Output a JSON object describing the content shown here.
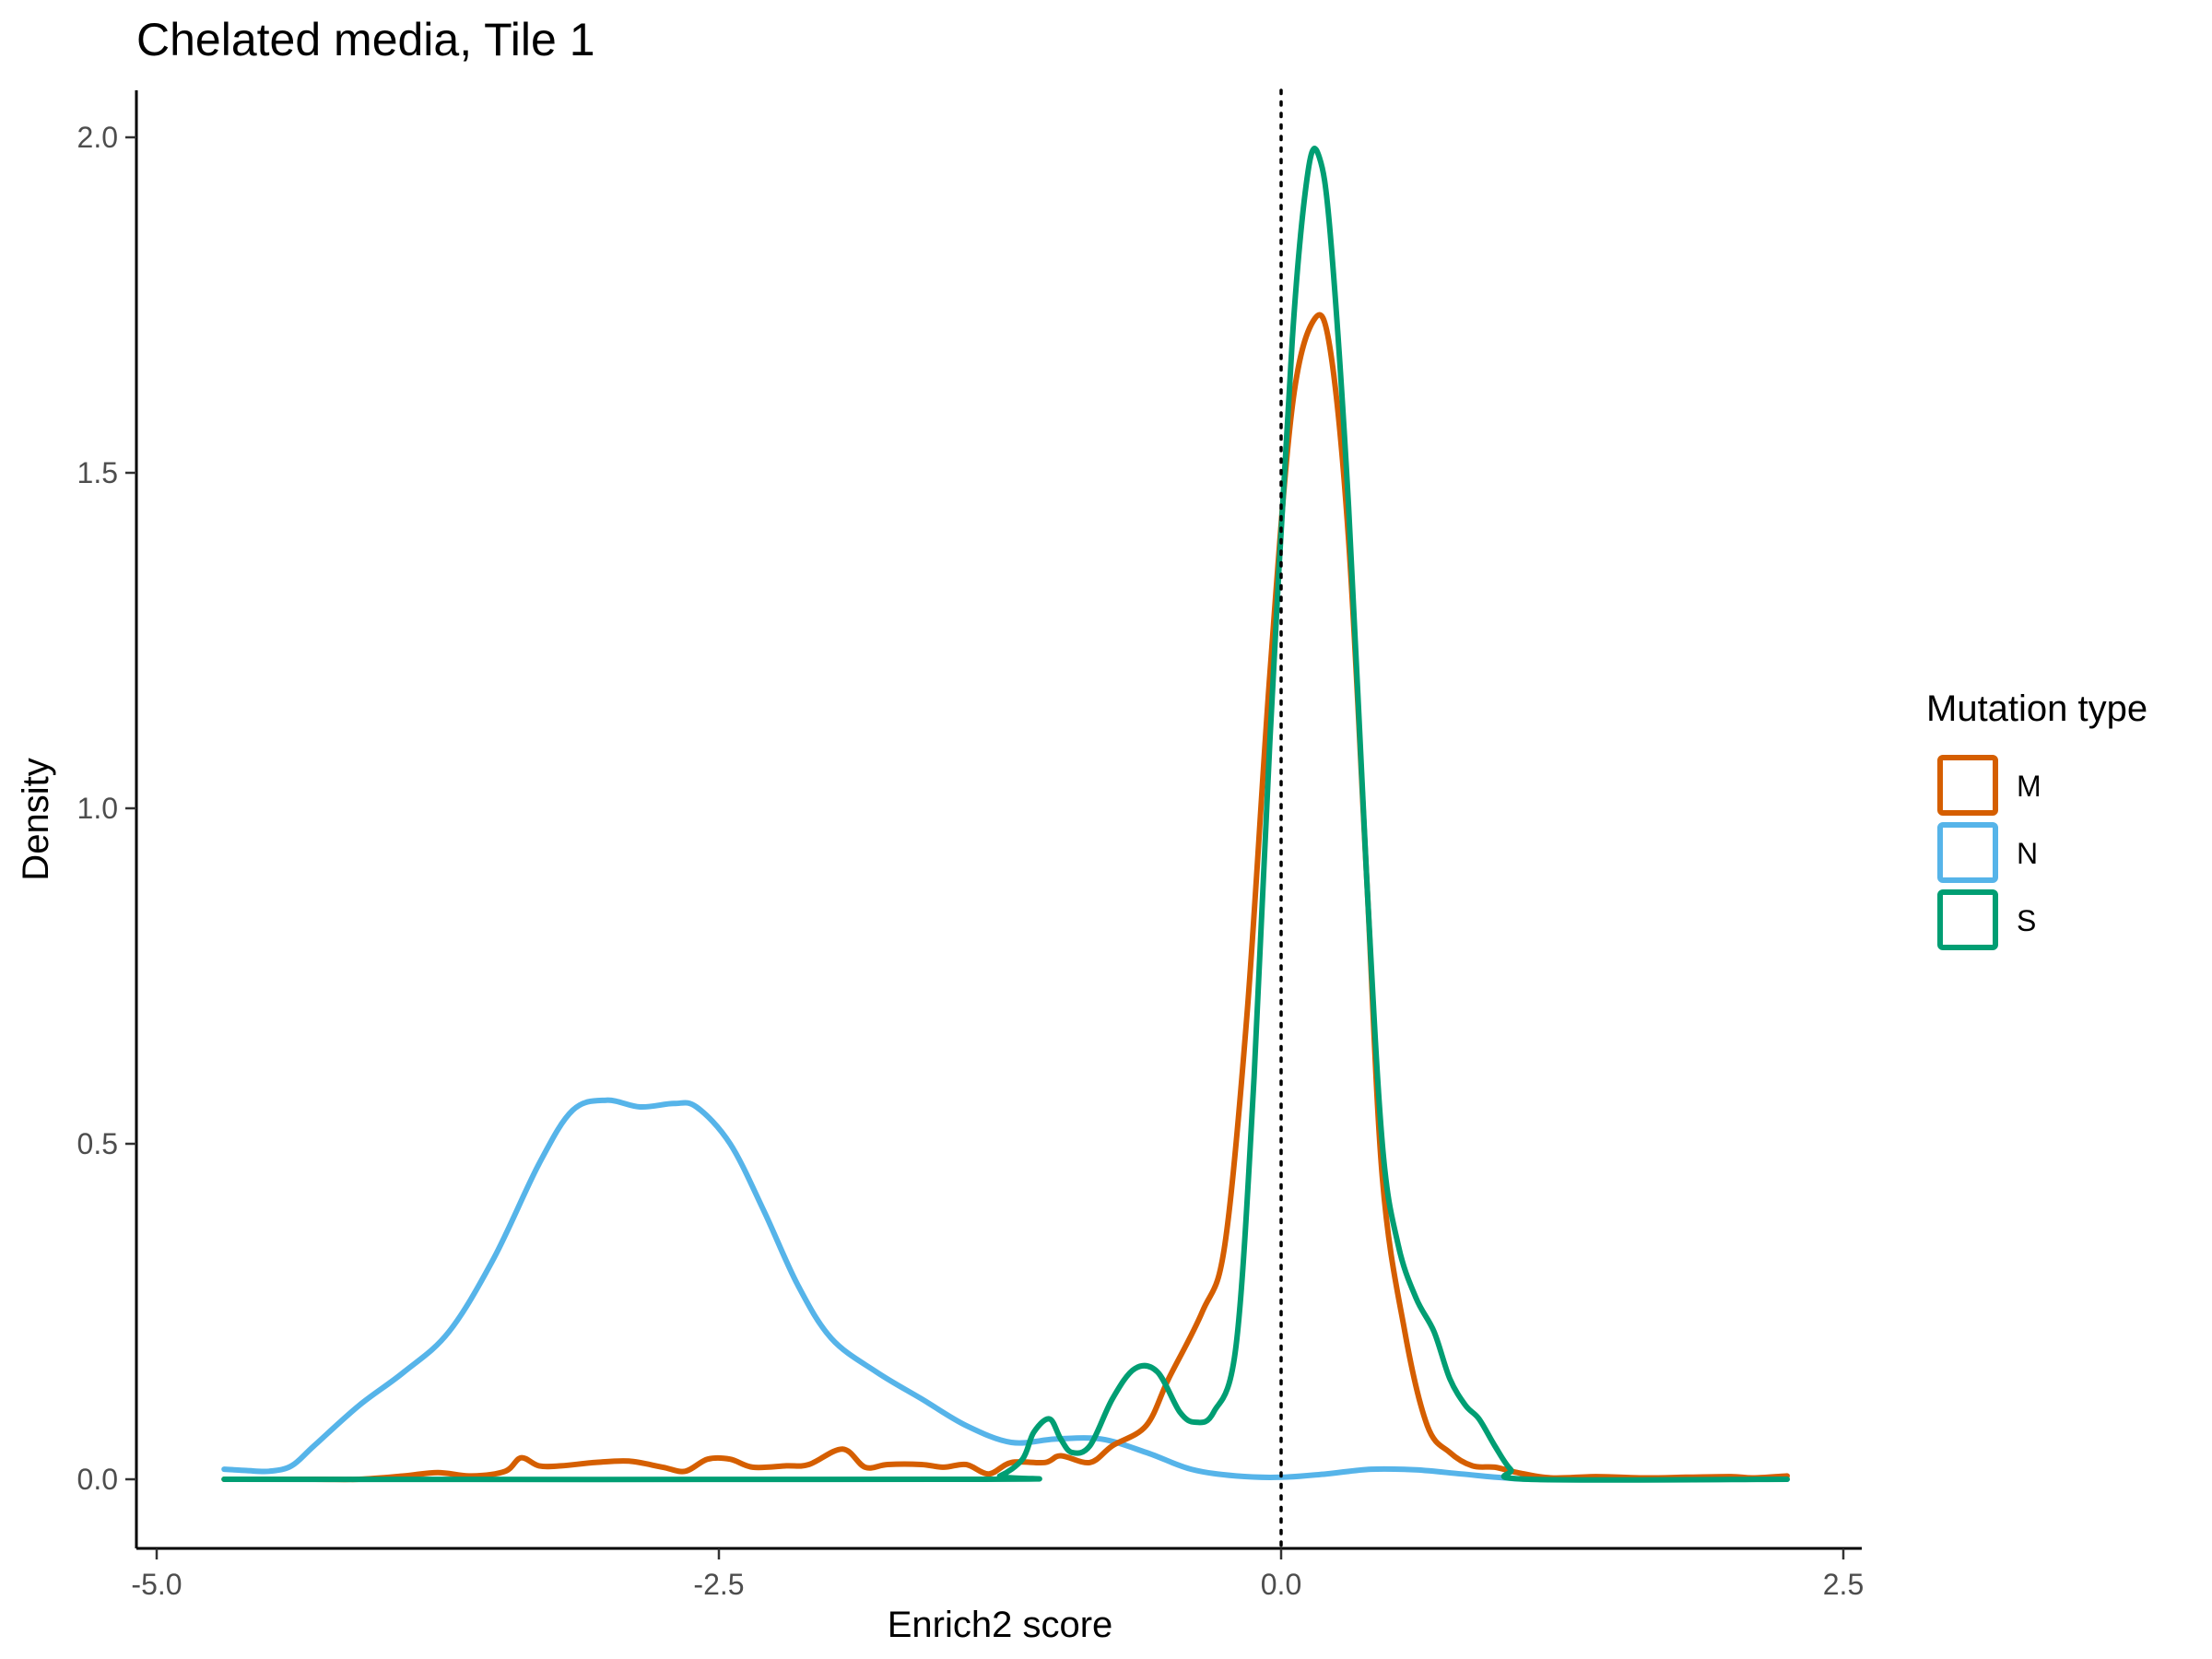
{
  "chart_data": {
    "type": "line",
    "title": "Chelated media, Tile 1",
    "xlabel": "Enrich2 score",
    "ylabel": "Density",
    "xlim": [
      -5.0,
      2.5
    ],
    "ylim": [
      -0.1,
      2.05
    ],
    "xticks": [
      -5.0,
      -2.5,
      0.0,
      2.5
    ],
    "xtick_labels": [
      "-5.0",
      "-2.5",
      "0.0",
      "2.5"
    ],
    "yticks": [
      0.0,
      0.5,
      1.0,
      1.5,
      2.0
    ],
    "ytick_labels": [
      "0.0",
      "0.5",
      "1.0",
      "1.5",
      "2.0"
    ],
    "grid": false,
    "vline": {
      "x": 0.0,
      "style": "dotted"
    },
    "legend": {
      "title": "Mutation type",
      "position": "right"
    },
    "series": [
      {
        "name": "M",
        "color": "#D55E00",
        "points": [
          [
            -4.7,
            0.0
          ],
          [
            -4.3,
            0.0
          ],
          [
            -4.1,
            0.0
          ],
          [
            -3.9,
            0.005
          ],
          [
            -3.75,
            0.01
          ],
          [
            -3.6,
            0.005
          ],
          [
            -3.45,
            0.012
          ],
          [
            -3.38,
            0.032
          ],
          [
            -3.3,
            0.02
          ],
          [
            -3.2,
            0.02
          ],
          [
            -3.05,
            0.025
          ],
          [
            -2.9,
            0.027
          ],
          [
            -2.75,
            0.018
          ],
          [
            -2.65,
            0.012
          ],
          [
            -2.55,
            0.03
          ],
          [
            -2.45,
            0.03
          ],
          [
            -2.35,
            0.018
          ],
          [
            -2.2,
            0.02
          ],
          [
            -2.1,
            0.022
          ],
          [
            -1.95,
            0.045
          ],
          [
            -1.85,
            0.018
          ],
          [
            -1.75,
            0.022
          ],
          [
            -1.6,
            0.022
          ],
          [
            -1.5,
            0.018
          ],
          [
            -1.4,
            0.022
          ],
          [
            -1.3,
            0.008
          ],
          [
            -1.2,
            0.025
          ],
          [
            -1.05,
            0.025
          ],
          [
            -0.98,
            0.035
          ],
          [
            -0.85,
            0.025
          ],
          [
            -0.75,
            0.05
          ],
          [
            -0.6,
            0.08
          ],
          [
            -0.5,
            0.15
          ],
          [
            -0.35,
            0.25
          ],
          [
            -0.25,
            0.35
          ],
          [
            -0.15,
            0.7
          ],
          [
            -0.05,
            1.2
          ],
          [
            0.05,
            1.6
          ],
          [
            0.15,
            1.73
          ],
          [
            0.22,
            1.68
          ],
          [
            0.3,
            1.4
          ],
          [
            0.38,
            0.9
          ],
          [
            0.45,
            0.45
          ],
          [
            0.55,
            0.22
          ],
          [
            0.65,
            0.08
          ],
          [
            0.75,
            0.04
          ],
          [
            0.85,
            0.02
          ],
          [
            0.95,
            0.018
          ],
          [
            1.05,
            0.01
          ],
          [
            1.2,
            0.002
          ],
          [
            1.4,
            0.004
          ],
          [
            1.6,
            0.002
          ],
          [
            1.8,
            0.003
          ],
          [
            2.0,
            0.004
          ],
          [
            2.1,
            0.002
          ],
          [
            2.25,
            0.005
          ]
        ]
      },
      {
        "name": "N",
        "color": "#56B4E9",
        "points": [
          [
            -4.7,
            0.015
          ],
          [
            -4.6,
            0.013
          ],
          [
            -4.5,
            0.012
          ],
          [
            -4.4,
            0.02
          ],
          [
            -4.3,
            0.05
          ],
          [
            -4.1,
            0.11
          ],
          [
            -3.9,
            0.16
          ],
          [
            -3.7,
            0.22
          ],
          [
            -3.5,
            0.33
          ],
          [
            -3.3,
            0.47
          ],
          [
            -3.15,
            0.55
          ],
          [
            -3.0,
            0.565
          ],
          [
            -2.85,
            0.555
          ],
          [
            -2.7,
            0.56
          ],
          [
            -2.6,
            0.555
          ],
          [
            -2.45,
            0.5
          ],
          [
            -2.3,
            0.4
          ],
          [
            -2.15,
            0.29
          ],
          [
            -2.0,
            0.21
          ],
          [
            -1.8,
            0.16
          ],
          [
            -1.6,
            0.12
          ],
          [
            -1.4,
            0.08
          ],
          [
            -1.2,
            0.055
          ],
          [
            -1.0,
            0.06
          ],
          [
            -0.8,
            0.06
          ],
          [
            -0.6,
            0.04
          ],
          [
            -0.4,
            0.015
          ],
          [
            -0.2,
            0.005
          ],
          [
            0.0,
            0.003
          ],
          [
            0.2,
            0.008
          ],
          [
            0.4,
            0.015
          ],
          [
            0.6,
            0.014
          ],
          [
            0.8,
            0.008
          ],
          [
            1.0,
            0.002
          ],
          [
            1.2,
            0.0
          ],
          [
            2.25,
            0.0
          ]
        ]
      },
      {
        "name": "S",
        "color": "#009E73",
        "points": [
          [
            -4.7,
            0.0
          ],
          [
            -1.35,
            0.0
          ],
          [
            -1.25,
            0.005
          ],
          [
            -1.15,
            0.03
          ],
          [
            -1.1,
            0.07
          ],
          [
            -1.03,
            0.09
          ],
          [
            -0.98,
            0.06
          ],
          [
            -0.93,
            0.04
          ],
          [
            -0.85,
            0.05
          ],
          [
            -0.75,
            0.12
          ],
          [
            -0.65,
            0.165
          ],
          [
            -0.55,
            0.16
          ],
          [
            -0.45,
            0.1
          ],
          [
            -0.38,
            0.085
          ],
          [
            -0.3,
            0.1
          ],
          [
            -0.2,
            0.2
          ],
          [
            -0.12,
            0.6
          ],
          [
            -0.05,
            1.1
          ],
          [
            0.05,
            1.7
          ],
          [
            0.12,
            1.95
          ],
          [
            0.17,
            1.97
          ],
          [
            0.22,
            1.85
          ],
          [
            0.3,
            1.45
          ],
          [
            0.38,
            0.9
          ],
          [
            0.45,
            0.5
          ],
          [
            0.52,
            0.35
          ],
          [
            0.6,
            0.27
          ],
          [
            0.68,
            0.22
          ],
          [
            0.75,
            0.15
          ],
          [
            0.82,
            0.11
          ],
          [
            0.88,
            0.09
          ],
          [
            0.95,
            0.05
          ],
          [
            1.02,
            0.015
          ],
          [
            1.1,
            0.0
          ],
          [
            2.25,
            0.0
          ]
        ]
      }
    ]
  }
}
